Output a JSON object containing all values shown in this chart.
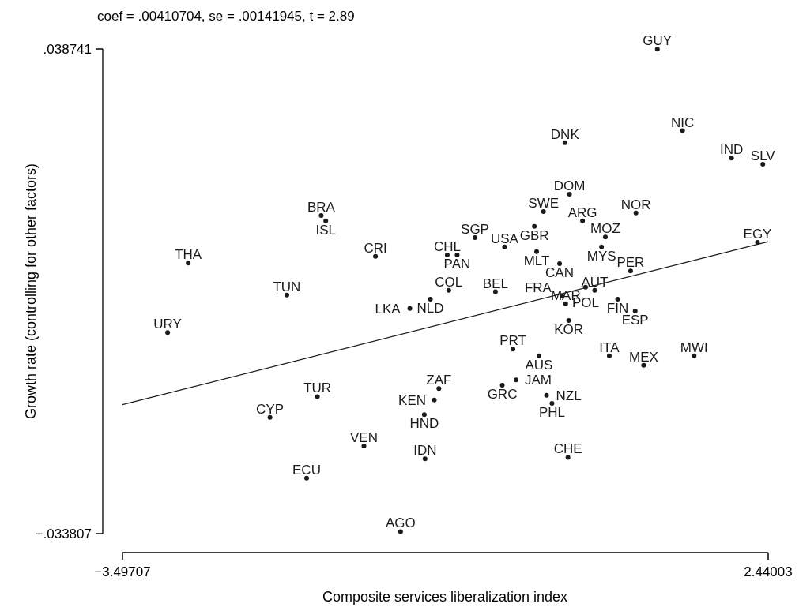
{
  "chart_data": {
    "type": "scatter",
    "title": "coef = .00410704, se = .00141945, t = 2.89",
    "xlabel": "Composite services liberalization index",
    "ylabel": "Growth rate (controlling for other factors)",
    "xlim": [
      -3.49707,
      2.44003
    ],
    "ylim": [
      -0.033807,
      0.038741
    ],
    "xticks": [
      {
        "value": -3.49707,
        "label": "−3.49707"
      },
      {
        "value": 2.44003,
        "label": "2.44003"
      }
    ],
    "yticks": [
      {
        "value": -0.033807,
        "label": "−.033807"
      },
      {
        "value": 0.038741,
        "label": ".038741"
      }
    ],
    "grid": false,
    "legend": false,
    "series": [
      {
        "type": "scatter",
        "color": "#1a1a1a",
        "marker": "circle",
        "x": [
          1.421,
          0.571,
          1.653,
          2.103,
          2.391,
          0.613,
          -1.67,
          -1.628,
          0.374,
          0.29,
          0.733,
          1.224,
          -0.256,
          0.943,
          0.908,
          0.016,
          0.311,
          2.342,
          -2.893,
          -1.171,
          -0.511,
          -0.42,
          0.522,
          1.175,
          -1.986,
          -0.497,
          -0.068,
          -0.666,
          -0.855,
          0.761,
          0.845,
          0.543,
          1.056,
          0.578,
          1.217,
          0.606,
          -3.082,
          0.093,
          0.332,
          0.979,
          1.295,
          1.759,
          0.122,
          -0.005,
          -0.588,
          -0.63,
          0.402,
          0.452,
          -1.705,
          -0.722,
          -2.141,
          -1.277,
          -0.715,
          0.599,
          -1.804,
          -0.94
        ],
        "values": [
          0.0387,
          0.0247,
          0.0265,
          0.0224,
          0.0215,
          0.017,
          0.0138,
          0.013,
          0.0144,
          0.0122,
          0.013,
          0.0142,
          0.0105,
          0.0106,
          0.0091,
          0.0091,
          0.0084,
          0.0098,
          0.0067,
          0.0077,
          0.0079,
          0.0079,
          0.0066,
          0.0055,
          0.0019,
          0.0026,
          0.0024,
          0.0013,
          -0.0001,
          0.0031,
          0.0026,
          0.0018,
          0.0013,
          0.0006,
          -0.0005,
          -0.0019,
          -0.0037,
          -0.0062,
          -0.0072,
          -0.0072,
          -0.0086,
          -0.0072,
          -0.0108,
          -0.0116,
          -0.0121,
          -0.0138,
          -0.0131,
          -0.0143,
          -0.0133,
          -0.016,
          -0.0164,
          -0.0207,
          -0.0226,
          -0.0224,
          -0.0255,
          -0.0335
        ],
        "value_labels": [
          "GUY",
          "DNK",
          "NIC",
          "IND",
          "SLV",
          "DOM",
          "BRA",
          "ISL",
          "SWE",
          "GBR",
          "ARG",
          "NOR",
          "SGP",
          "MOZ",
          "MYS",
          "USA",
          "MLT",
          "EGY",
          "THA",
          "CRI",
          "CHL",
          "PAN",
          "CAN",
          "PER",
          "TUN",
          "COL",
          "BEL",
          "NLD",
          "LKA",
          "POL",
          "AUT",
          "FRA",
          "FIN",
          "MAR",
          "ESP",
          "KOR",
          "URY",
          "PRT",
          "AUS",
          "ITA",
          "MEX",
          "MWI",
          "JAM",
          "GRC",
          "ZAF",
          "KEN",
          "NZL",
          "PHL",
          "TUR",
          "HND",
          "CYP",
          "VEN",
          "IDN",
          "CHE",
          "ECU",
          "AGO"
        ]
      },
      {
        "type": "line",
        "color": "#1a1a1a",
        "line_style": "solid",
        "x": [
          -3.49707,
          2.44003
        ],
        "values": [
          -0.0145,
          0.0099
        ]
      }
    ]
  }
}
